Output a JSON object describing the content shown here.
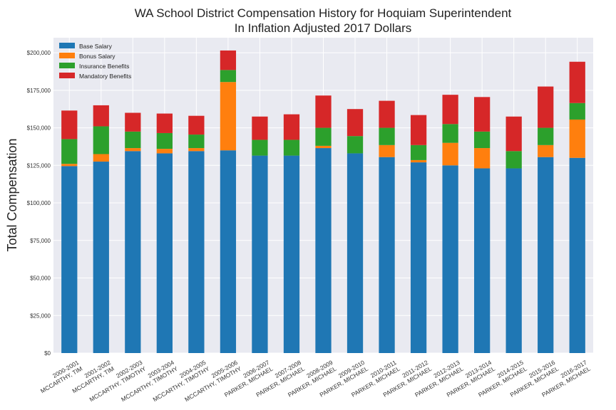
{
  "chart_data": {
    "type": "bar",
    "stacked": true,
    "title": "WA School District Compensation History for Hoquiam Superintendent",
    "subtitle": "In Inflation Adjusted 2017 Dollars",
    "xlabel": "",
    "ylabel": "Total Compensation",
    "ylim": [
      0,
      210000
    ],
    "yticks": [
      0,
      25000,
      50000,
      75000,
      100000,
      125000,
      150000,
      175000,
      200000
    ],
    "ytick_labels": [
      "$0",
      "$25,000",
      "$50,000",
      "$75,000",
      "$100,000",
      "$125,000",
      "$150,000",
      "$175,000",
      "$200,000"
    ],
    "grid": true,
    "legend_position": "top-left",
    "categories": [
      [
        "2000-2001",
        "MCCARTHY, TIM"
      ],
      [
        "2001-2002",
        "MCCARTHY, TIM"
      ],
      [
        "2002-2003",
        "MCCARTHY, TIMOTHY"
      ],
      [
        "2003-2004",
        "MCCARTHY, TIMOTHY"
      ],
      [
        "2004-2005",
        "MCCARTHY, TIMOTHY"
      ],
      [
        "2005-2006",
        "MCCARTHY, TIMOTHY"
      ],
      [
        "2006-2007",
        "PARKER, MICHAEL"
      ],
      [
        "2007-2008",
        "PARKER, MICHAEL"
      ],
      [
        "2008-2009",
        "PARKER, MICHAEL"
      ],
      [
        "2009-2010",
        "PARKER, MICHAEL"
      ],
      [
        "2010-2011",
        "PARKER, MICHAEL"
      ],
      [
        "2011-2012",
        "PARKER, MICHAEL"
      ],
      [
        "2012-2013",
        "PARKER, MICHAEL"
      ],
      [
        "2013-2014",
        "PARKER, MICHAEL"
      ],
      [
        "2014-2015",
        "PARKER, MICHAEL"
      ],
      [
        "2015-2016",
        "PARKER, MICHAEL"
      ],
      [
        "2016-2017",
        "PARKER, MICHAEL"
      ]
    ],
    "series": [
      {
        "name": "Base Salary",
        "color": "#1f77b4",
        "values": [
          124500,
          127500,
          134500,
          133000,
          134500,
          135000,
          131500,
          131500,
          136500,
          133000,
          130500,
          127000,
          125000,
          123000,
          123000,
          130500,
          130000
        ]
      },
      {
        "name": "Bonus Salary",
        "color": "#ff7f0e",
        "values": [
          1500,
          5000,
          2000,
          3000,
          2000,
          45500,
          0,
          0,
          1500,
          0,
          8000,
          1500,
          15000,
          13500,
          0,
          8000,
          25500
        ]
      },
      {
        "name": "Insurance Benefits",
        "color": "#2ca02c",
        "values": [
          16500,
          18500,
          11000,
          10500,
          9000,
          8000,
          10500,
          10500,
          12000,
          11500,
          11500,
          10000,
          12500,
          11000,
          11500,
          11500,
          11000
        ]
      },
      {
        "name": "Mandatory Benefits",
        "color": "#d62728",
        "values": [
          19000,
          14000,
          12500,
          13000,
          12500,
          13000,
          15500,
          17000,
          21500,
          18000,
          18000,
          20000,
          19500,
          23000,
          23000,
          27500,
          27500
        ]
      }
    ]
  }
}
